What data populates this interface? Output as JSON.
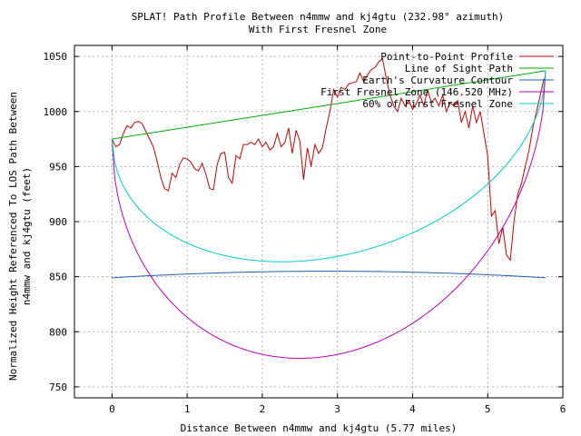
{
  "chart_data": {
    "type": "line",
    "title": "SPLAT! Path Profile Between n4mmw and kj4gtu (232.98° azimuth)",
    "subtitle": "With First Fresnel Zone",
    "xlabel": "Distance Between n4mmw and kj4gtu (5.77 miles)",
    "ylabel": "Normalized Height Referenced To LOS Path Between",
    "ylabel2": "n4mmw and kj4gtu (feet)",
    "xlim": [
      -0.5,
      6
    ],
    "ylim": [
      740,
      1060
    ],
    "xticks": [
      "0",
      "1",
      "2",
      "3",
      "4",
      "5",
      "6"
    ],
    "yticks": [
      "750",
      "800",
      "850",
      "900",
      "950",
      "1000",
      "1050"
    ],
    "grid": true,
    "legend_position": "top-right",
    "series": [
      {
        "name": "Point-to-Point Profile",
        "color": "#cc0000",
        "x": [
          0,
          0.05,
          0.1,
          0.15,
          0.2,
          0.25,
          0.3,
          0.35,
          0.4,
          0.45,
          0.5,
          0.55,
          0.6,
          0.65,
          0.7,
          0.75,
          0.8,
          0.85,
          0.9,
          0.95,
          1.0,
          1.05,
          1.1,
          1.15,
          1.2,
          1.25,
          1.3,
          1.35,
          1.4,
          1.45,
          1.5,
          1.55,
          1.6,
          1.65,
          1.7,
          1.75,
          1.8,
          1.85,
          1.9,
          1.95,
          2.0,
          2.05,
          2.1,
          2.15,
          2.2,
          2.25,
          2.3,
          2.35,
          2.4,
          2.45,
          2.5,
          2.55,
          2.6,
          2.65,
          2.7,
          2.75,
          2.8,
          2.85,
          2.9,
          2.95,
          3.0,
          3.05,
          3.1,
          3.15,
          3.2,
          3.25,
          3.3,
          3.35,
          3.4,
          3.45,
          3.5,
          3.55,
          3.6,
          3.65,
          3.7,
          3.75,
          3.8,
          3.85,
          3.9,
          3.95,
          4.0,
          4.05,
          4.1,
          4.15,
          4.2,
          4.25,
          4.3,
          4.35,
          4.4,
          4.45,
          4.5,
          4.55,
          4.6,
          4.65,
          4.7,
          4.75,
          4.8,
          4.85,
          4.9,
          4.95,
          5.0,
          5.05,
          5.1,
          5.15,
          5.2,
          5.25,
          5.3,
          5.35,
          5.4,
          5.45,
          5.5,
          5.55,
          5.6,
          5.65,
          5.7,
          5.75
        ],
        "y": [
          975,
          968,
          970,
          980,
          987,
          985,
          990,
          991,
          989,
          982,
          975,
          968,
          955,
          940,
          930,
          928,
          944,
          940,
          952,
          958,
          957,
          954,
          948,
          946,
          953,
          943,
          930,
          929,
          952,
          962,
          963,
          940,
          935,
          960,
          957,
          970,
          970,
          972,
          970,
          975,
          968,
          972,
          965,
          968,
          980,
          968,
          972,
          985,
          962,
          983,
          973,
          938,
          967,
          950,
          970,
          962,
          967,
          985,
          1000,
          1020,
          1013,
          1022,
          1020,
          1025,
          1026,
          1027,
          1035,
          1027,
          1033,
          1038,
          1040,
          1045,
          1048,
          1030,
          1015,
          1005,
          1000,
          1012,
          1005,
          1010,
          1002,
          1007,
          1015,
          1005,
          1020,
          1008,
          1012,
          1005,
          1015,
          1000,
          1008,
          1005,
          1010,
          990,
          1000,
          985,
          1005,
          990,
          1000,
          980,
          960,
          905,
          910,
          880,
          895,
          870,
          865,
          900,
          925,
          935,
          950,
          965,
          985,
          1000,
          1015,
          1030
        ]
      },
      {
        "name": "Line of Sight Path",
        "color": "#00aa00",
        "x": [
          0,
          5.77
        ],
        "y": [
          975,
          1037
        ]
      },
      {
        "name": "Earth's Curvature Contour",
        "color": "#1f5fc0",
        "curve": "parabola",
        "x": [
          0,
          2.885,
          5.77
        ],
        "y": [
          849,
          855,
          849
        ]
      },
      {
        "name": "First Fresnel Zone (146.520 MHz)",
        "color": "#bb00bb",
        "curve": "fresnel",
        "x": [
          0,
          2.885,
          5.77
        ],
        "y": [
          975,
          778,
          1037
        ]
      },
      {
        "name": "60% of First Fresnel Zone",
        "color": "#00cccc",
        "curve": "fresnel",
        "x": [
          0,
          2.885,
          5.77
        ],
        "y": [
          975,
          867,
          1037
        ]
      }
    ]
  }
}
